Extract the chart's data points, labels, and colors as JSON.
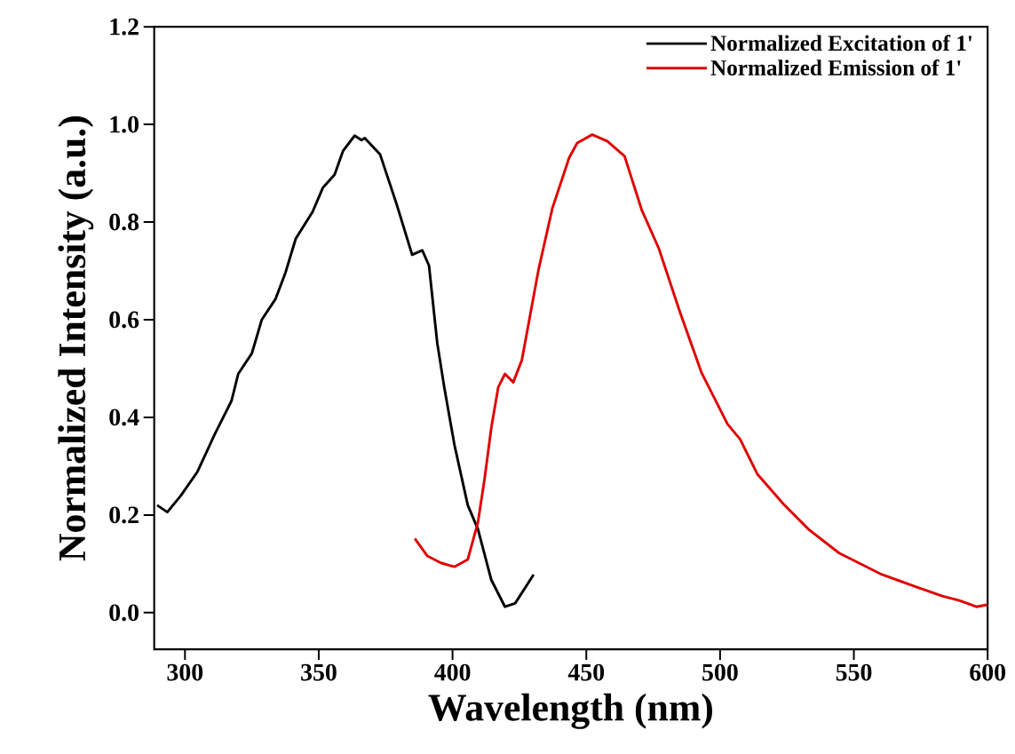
{
  "chart_data": {
    "type": "line",
    "xlabel": "Wavelength (nm)",
    "ylabel": "Normalized Intensity (a.u.)",
    "xlim": [
      288.5,
      600
    ],
    "ylim": [
      -0.075,
      1.2
    ],
    "xticks": [
      300,
      350,
      400,
      450,
      500,
      550,
      600
    ],
    "yticks": [
      {
        "value": 0,
        "label": "0.0"
      },
      {
        "value": 0.2,
        "label": "0.2"
      },
      {
        "value": 0.4,
        "label": "0.4"
      },
      {
        "value": 0.6,
        "label": "0.6"
      },
      {
        "value": 0.8,
        "label": "0.8"
      },
      {
        "value": 1,
        "label": "1.0"
      },
      {
        "value": 1.2,
        "label": "1.2"
      }
    ],
    "legend": "top right",
    "series": [
      {
        "name": "Normalized Excitation of 1'",
        "color": "#000000",
        "x": [
          289.6,
          293.4,
          298.5,
          304.7,
          311.1,
          317.4,
          319.9,
          325.0,
          328.7,
          333.8,
          337.6,
          341.4,
          347.7,
          351.5,
          355.9,
          359.1,
          363.4,
          366.0,
          367.2,
          372.9,
          379.2,
          384.9,
          388.7,
          391.2,
          394.3,
          396.9,
          400.7,
          405.7,
          409.5,
          414.5,
          419.6,
          423.4,
          430.3
        ],
        "values": [
          0.22,
          0.206,
          0.24,
          0.289,
          0.365,
          0.434,
          0.489,
          0.531,
          0.6,
          0.642,
          0.697,
          0.766,
          0.821,
          0.87,
          0.897,
          0.946,
          0.977,
          0.968,
          0.972,
          0.939,
          0.835,
          0.733,
          0.742,
          0.711,
          0.552,
          0.462,
          0.344,
          0.22,
          0.171,
          0.067,
          0.012,
          0.019,
          0.078
        ]
      },
      {
        "name": "Normalized Emission of 1'",
        "color": "#e00000",
        "x": [
          385.9,
          390.6,
          395.6,
          400.7,
          405.7,
          409.5,
          412.0,
          414.5,
          417.1,
          419.6,
          422.7,
          425.9,
          432.2,
          437.3,
          443.6,
          446.6,
          452.2,
          457.8,
          464.3,
          470.7,
          477.1,
          485.1,
          493.1,
          502.8,
          507.5,
          513.9,
          523.6,
          533.2,
          544.5,
          560.5,
          571.7,
          583.0,
          589.4,
          595.8,
          599.8
        ],
        "values": [
          0.152,
          0.116,
          0.102,
          0.094,
          0.109,
          0.185,
          0.275,
          0.379,
          0.462,
          0.489,
          0.472,
          0.517,
          0.704,
          0.828,
          0.932,
          0.962,
          0.979,
          0.966,
          0.935,
          0.825,
          0.746,
          0.614,
          0.491,
          0.386,
          0.355,
          0.284,
          0.223,
          0.17,
          0.122,
          0.078,
          0.056,
          0.034,
          0.025,
          0.012,
          0.016
        ]
      }
    ]
  }
}
